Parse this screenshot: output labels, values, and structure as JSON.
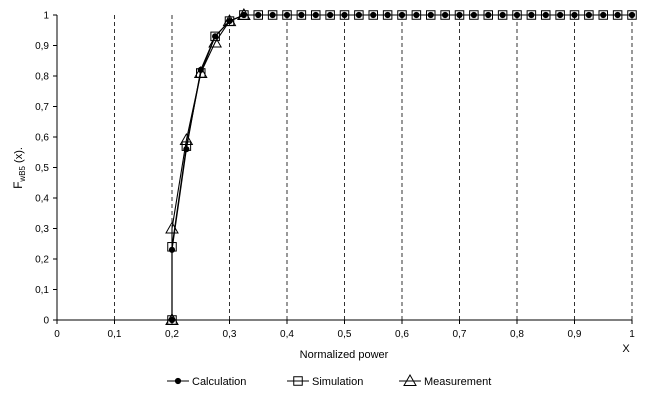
{
  "chart_data": {
    "type": "line",
    "xlabel": "Normalized power",
    "x_axis_symbol": "X",
    "ylabel": {
      "main": "F",
      "subscript": "wB5",
      "suffix": " (x)."
    },
    "xlim": [
      0,
      1
    ],
    "ylim": [
      0,
      1
    ],
    "x_ticks": [
      "0",
      "0,1",
      "0,2",
      "0,3",
      "0,4",
      "0,5",
      "0,6",
      "0,7",
      "0,8",
      "0,9",
      "1"
    ],
    "y_ticks": [
      "0",
      "0,1",
      "0,2",
      "0,3",
      "0,4",
      "0,5",
      "0,6",
      "0,7",
      "0,8",
      "0,9",
      "1"
    ],
    "grid": {
      "vertical": "dashed",
      "horizontal": "none"
    },
    "legend_position": "bottom-center",
    "colors": {
      "series": "#000000",
      "grid": "#000000",
      "background": "#ffffff"
    },
    "series": [
      {
        "name": "Calculation",
        "marker": "dot",
        "x": [
          0.2,
          0.2,
          0.225,
          0.25,
          0.275,
          0.3,
          0.325,
          0.35,
          0.375,
          0.4,
          0.425,
          0.45,
          0.475,
          0.5,
          0.525,
          0.55,
          0.575,
          0.6,
          0.625,
          0.65,
          0.675,
          0.7,
          0.725,
          0.75,
          0.775,
          0.8,
          0.825,
          0.85,
          0.875,
          0.9,
          0.925,
          0.95,
          0.975,
          1.0
        ],
        "y": [
          0.0,
          0.23,
          0.56,
          0.82,
          0.93,
          0.98,
          1.0,
          1.0,
          1.0,
          1.0,
          1.0,
          1.0,
          1.0,
          1.0,
          1.0,
          1.0,
          1.0,
          1.0,
          1.0,
          1.0,
          1.0,
          1.0,
          1.0,
          1.0,
          1.0,
          1.0,
          1.0,
          1.0,
          1.0,
          1.0,
          1.0,
          1.0,
          1.0,
          1.0
        ]
      },
      {
        "name": "Simulation",
        "marker": "square",
        "x": [
          0.2,
          0.2,
          0.225,
          0.25,
          0.275,
          0.3,
          0.325,
          0.35,
          0.375,
          0.4,
          0.425,
          0.45,
          0.475,
          0.5,
          0.525,
          0.55,
          0.575,
          0.6,
          0.625,
          0.65,
          0.675,
          0.7,
          0.725,
          0.75,
          0.775,
          0.8,
          0.825,
          0.85,
          0.875,
          0.9,
          0.925,
          0.95,
          0.975,
          1.0
        ],
        "y": [
          0.0,
          0.24,
          0.57,
          0.81,
          0.93,
          0.98,
          1.0,
          1.0,
          1.0,
          1.0,
          1.0,
          1.0,
          1.0,
          1.0,
          1.0,
          1.0,
          1.0,
          1.0,
          1.0,
          1.0,
          1.0,
          1.0,
          1.0,
          1.0,
          1.0,
          1.0,
          1.0,
          1.0,
          1.0,
          1.0,
          1.0,
          1.0,
          1.0,
          1.0
        ]
      },
      {
        "name": "Measurement",
        "marker": "triangle",
        "x": [
          0.2,
          0.2,
          0.225,
          0.25,
          0.275,
          0.3,
          0.325
        ],
        "y": [
          0.0,
          0.3,
          0.59,
          0.81,
          0.91,
          0.98,
          1.0
        ]
      }
    ]
  }
}
